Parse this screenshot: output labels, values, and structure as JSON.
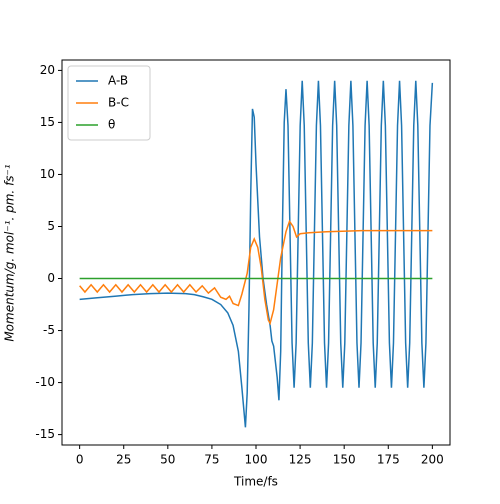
{
  "chart_data": {
    "type": "line",
    "xlabel": "Time/fs",
    "ylabel": "Momentum/g. mol⁻¹. pm. fs⁻¹",
    "xlim": [
      -10,
      210
    ],
    "xticks": [
      0,
      25,
      50,
      75,
      100,
      125,
      150,
      175,
      200
    ],
    "ylim": [
      -16,
      21
    ],
    "yticks": [
      -15,
      -10,
      -5,
      0,
      5,
      10,
      15,
      20
    ],
    "legend": "upper left",
    "series": [
      {
        "name": "A-B",
        "color": "#1f77b4",
        "x": [
          0,
          10,
          20,
          30,
          40,
          50,
          60,
          65,
          70,
          75,
          80,
          84,
          87,
          90,
          92,
          94,
          95,
          96,
          97,
          98,
          99,
          100,
          102,
          104,
          106,
          108,
          109,
          110,
          112,
          113,
          114,
          115,
          116,
          117,
          118.15,
          119.3,
          120.45,
          121.6,
          122.75,
          123.9,
          125.05,
          126.2,
          127.35,
          128.5,
          129.65,
          130.8,
          131.95,
          133.1,
          134.25,
          135.4,
          136.55,
          137.7,
          138.85,
          140,
          141.15,
          142.3,
          143.45,
          144.6,
          145.75,
          146.9,
          148.05,
          149.2,
          150.35,
          151.5,
          152.65,
          153.8,
          154.95,
          156.1,
          157.25,
          158.4,
          159.55,
          160.7,
          161.85,
          163,
          164.15,
          165.3,
          166.45,
          167.6,
          168.75,
          169.9,
          171.05,
          172.2,
          173.35,
          174.5,
          175.65,
          176.8,
          177.95,
          179.1,
          180.25,
          181.4,
          182.55,
          183.7,
          184.85,
          186,
          187.15,
          188.3,
          189.45,
          190.6,
          191.75,
          192.9,
          194.05,
          195.2,
          196.35,
          197.5,
          198.65,
          200
        ],
        "values": [
          -2,
          -1.85,
          -1.7,
          -1.55,
          -1.45,
          -1.4,
          -1.45,
          -1.55,
          -1.75,
          -2.0,
          -2.5,
          -3.3,
          -4.5,
          -7,
          -10.5,
          -14.3,
          -11,
          -3,
          8,
          16.3,
          15.5,
          11,
          4,
          0,
          -2.5,
          -4.5,
          -6,
          -6.5,
          -9.5,
          -11.7,
          -7,
          5,
          15,
          18.2,
          14.7,
          4.25,
          -6.2,
          -10.5,
          -6.2,
          4.25,
          14.7,
          19,
          14.7,
          4.25,
          -6.2,
          -10.5,
          -6.2,
          4.25,
          14.7,
          19,
          14.7,
          4.25,
          -6.2,
          -10.5,
          -6.2,
          4.25,
          14.7,
          19,
          14.7,
          4.25,
          -6.2,
          -10.5,
          -6.2,
          4.25,
          14.7,
          19,
          14.7,
          4.25,
          -6.2,
          -10.5,
          -6.2,
          4.25,
          14.7,
          19,
          14.7,
          4.25,
          -6.2,
          -10.5,
          -6.2,
          4.25,
          14.7,
          19,
          14.7,
          4.25,
          -6.2,
          -10.5,
          -6.2,
          4.25,
          14.7,
          19,
          14.7,
          4.25,
          -6.2,
          -10.5,
          -6.2,
          4.25,
          14.7,
          19,
          14.7,
          4.25,
          -6.2,
          -10.5,
          -6.2,
          4.25,
          14.7,
          18.8
        ]
      },
      {
        "name": "B-C",
        "color": "#ff7f0e",
        "x": [
          0,
          3,
          6.5,
          10,
          13.5,
          17,
          20.5,
          24,
          27.5,
          31,
          34.5,
          38,
          41.5,
          45,
          48.5,
          52,
          55.5,
          59,
          62.5,
          66,
          69.5,
          73,
          76.5,
          80,
          83,
          85,
          87,
          90,
          92,
          95,
          97,
          99,
          101,
          103,
          105,
          107,
          108,
          110,
          112,
          114,
          117,
          119,
          121,
          123,
          125,
          130,
          140,
          160,
          200
        ],
        "values": [
          -0.7,
          -1.3,
          -0.6,
          -1.3,
          -0.6,
          -1.3,
          -0.6,
          -1.3,
          -0.6,
          -1.3,
          -0.6,
          -1.3,
          -0.6,
          -1.3,
          -0.6,
          -1.3,
          -0.6,
          -1.3,
          -0.6,
          -1.3,
          -0.7,
          -1.4,
          -0.9,
          -1.8,
          -2.0,
          -1.7,
          -2.4,
          -2.6,
          -1.5,
          0.5,
          3,
          3.8,
          3,
          1,
          -2,
          -4,
          -4.3,
          -3,
          -0.5,
          2,
          4.5,
          5.5,
          5,
          4,
          4.3,
          4.4,
          4.5,
          4.6,
          4.6
        ]
      },
      {
        "name": "θ",
        "color": "#2ca02c",
        "x": [
          0,
          200
        ],
        "values": [
          0,
          0
        ]
      }
    ]
  }
}
